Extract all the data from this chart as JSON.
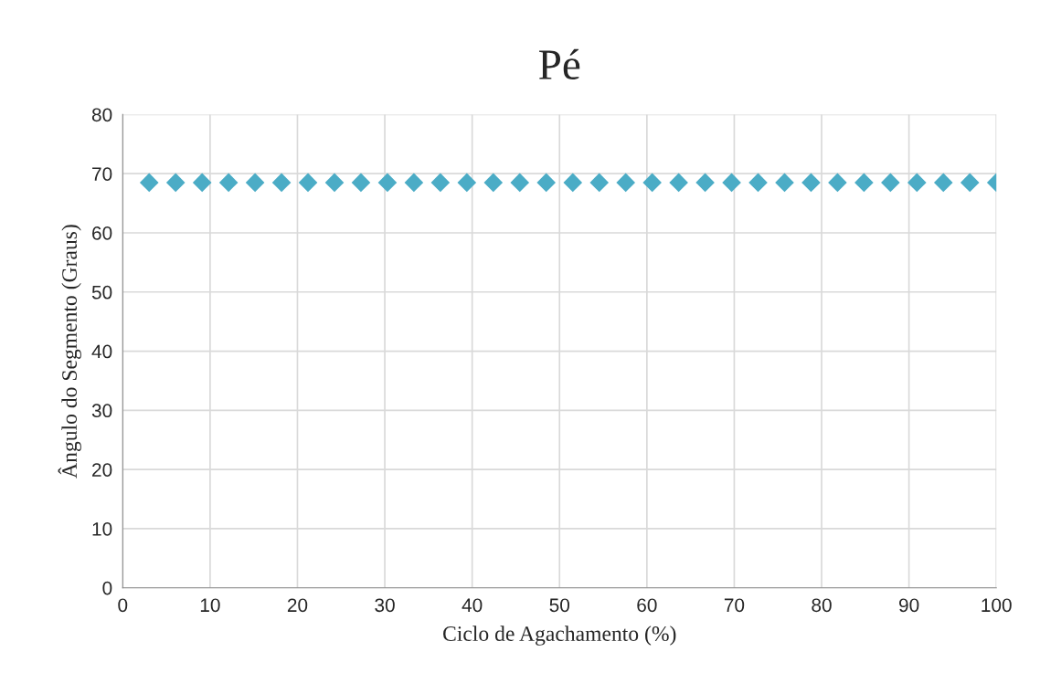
{
  "chart_data": {
    "type": "scatter",
    "title": "Pé",
    "xlabel": "Ciclo de Agachamento (%)",
    "ylabel": "Ângulo do Segmento (Graus)",
    "x": [
      3.03,
      6.06,
      9.09,
      12.12,
      15.15,
      18.18,
      21.21,
      24.24,
      27.27,
      30.3,
      33.33,
      36.36,
      39.39,
      42.42,
      45.45,
      48.48,
      51.52,
      54.55,
      57.58,
      60.61,
      63.64,
      66.67,
      69.7,
      72.73,
      75.76,
      78.79,
      81.82,
      84.85,
      87.88,
      90.91,
      93.94,
      96.97,
      100
    ],
    "series": [
      {
        "color": "#4bacc6",
        "values": [
          68.5,
          68.5,
          68.5,
          68.5,
          68.5,
          68.5,
          68.5,
          68.5,
          68.5,
          68.5,
          68.5,
          68.5,
          68.5,
          68.5,
          68.5,
          68.5,
          68.5,
          68.5,
          68.5,
          68.5,
          68.5,
          68.5,
          68.5,
          68.5,
          68.5,
          68.5,
          68.5,
          68.5,
          68.5,
          68.5,
          68.5,
          68.5,
          68.5
        ]
      }
    ],
    "xlim": [
      0,
      100
    ],
    "xticks": [
      0,
      10,
      20,
      30,
      40,
      50,
      60,
      70,
      80,
      90,
      100
    ],
    "ylim": [
      0,
      80
    ],
    "yticks": [
      0,
      10,
      20,
      30,
      40,
      50,
      60,
      70,
      80
    ],
    "grid": true,
    "marker": "diamond",
    "legend": false
  }
}
